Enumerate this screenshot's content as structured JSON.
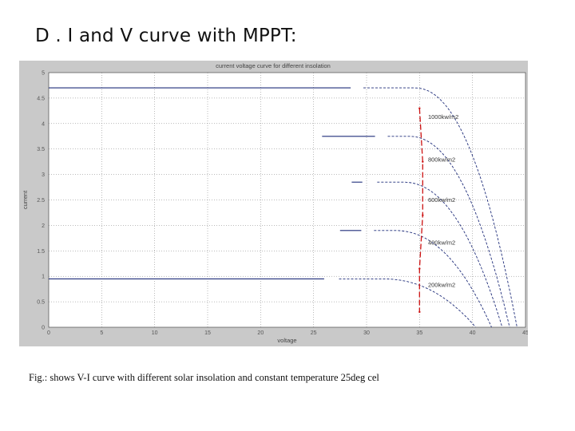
{
  "slide": {
    "title": "D . I and V curve with MPPT:",
    "caption": "Fig.: shows V-I curve with different solar insolation and constant temperature 25deg cel"
  },
  "chart_data": {
    "type": "line",
    "title": "current voltage curve for different insolation",
    "xlabel": "voltage",
    "ylabel": "current",
    "xlim": [
      0,
      45
    ],
    "ylim": [
      0,
      5
    ],
    "xticks": [
      "0",
      "5",
      "10",
      "15",
      "20",
      "25",
      "30",
      "35",
      "40",
      "45"
    ],
    "yticks": [
      "0",
      "0.5",
      "1",
      "1.5",
      "2",
      "2.5",
      "3",
      "3.5",
      "4",
      "4.5",
      "5"
    ],
    "grid": true,
    "colors": {
      "curve": "#1f2d7a",
      "mppt": "#cc1111",
      "plot_bg": "#ffffff",
      "figure_bg": "#c9c9c9"
    },
    "series": [
      {
        "name": "1000kw/m2",
        "isc": 4.7,
        "voc": 44.2,
        "solid_to": 28.5,
        "start": 0
      },
      {
        "name": "800kw/m2",
        "isc": 3.75,
        "voc": 43.5,
        "solid_to": 30.8,
        "start": 25.8
      },
      {
        "name": "600kw/m2",
        "isc": 2.85,
        "voc": 42.8,
        "solid_to": 29.8,
        "start": 28.6
      },
      {
        "name": "400kw/m2",
        "isc": 1.9,
        "voc": 41.8,
        "solid_to": 29.5,
        "start": 27.5
      },
      {
        "name": "200kw/m2",
        "isc": 0.95,
        "voc": 40.3,
        "solid_to": 26.2,
        "start": 0
      }
    ],
    "mppt_points": [
      {
        "v": 35.0,
        "i": 4.3
      },
      {
        "v": 35.3,
        "i": 3.25
      },
      {
        "v": 35.3,
        "i": 2.2
      },
      {
        "v": 35.0,
        "i": 1.15
      },
      {
        "v": 35.0,
        "i": 0.3
      }
    ]
  }
}
